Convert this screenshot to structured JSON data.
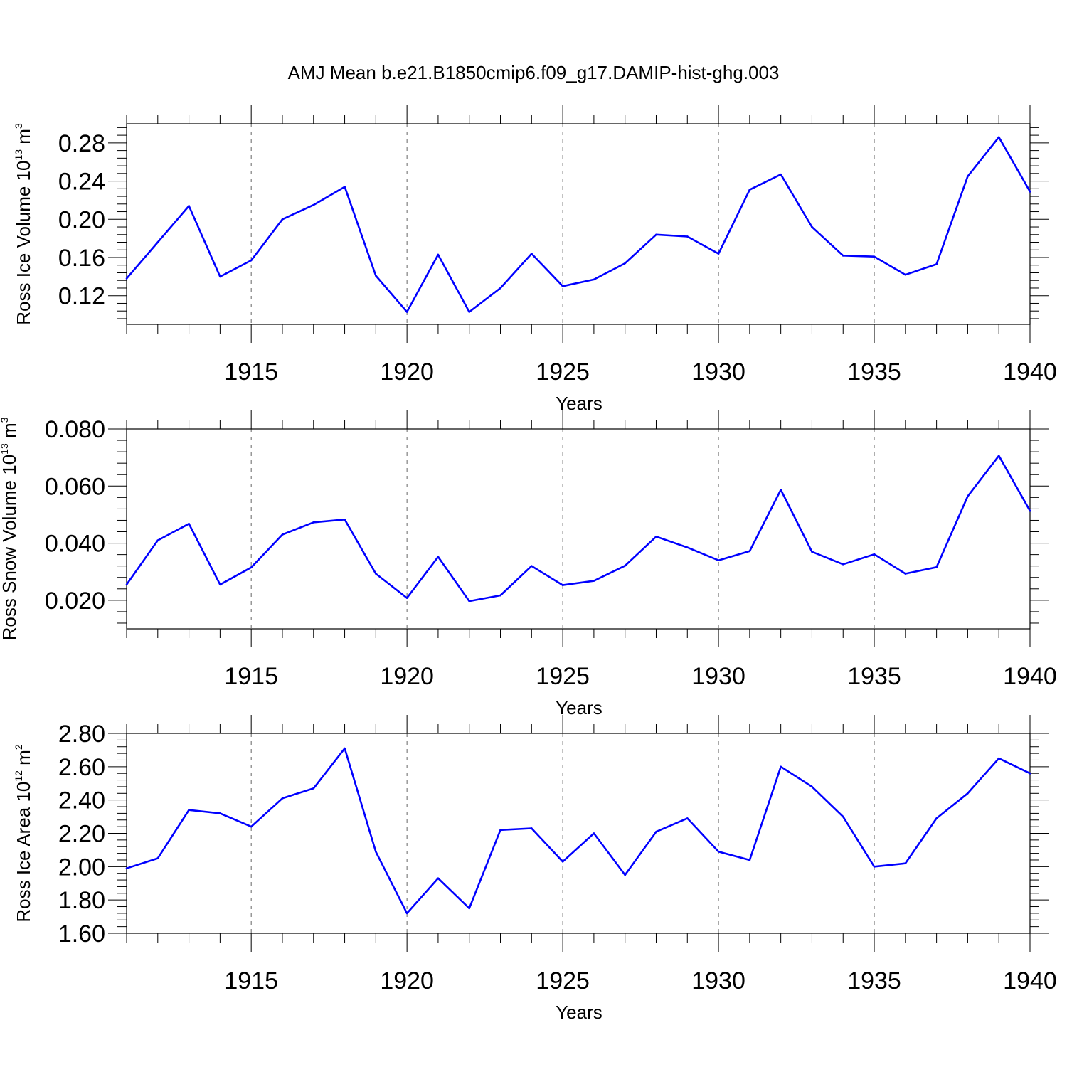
{
  "figure": {
    "title": "AMJ Mean b.e21.B1850cmip6.f09_g17.DAMIP-hist-ghg.003"
  },
  "chart_data": [
    {
      "type": "line",
      "ylabel": {
        "base": "Ross Ice Volume 10",
        "exp": "13",
        "unit": " m",
        "unit_exp": "3"
      },
      "xlabel": "Years",
      "xlim": [
        1911,
        1940
      ],
      "ylim": [
        0.09,
        0.3
      ],
      "xticks": [
        1915,
        1920,
        1925,
        1930,
        1935,
        1940
      ],
      "yticks": [
        "0.12",
        "0.16",
        "0.20",
        "0.24",
        "0.28"
      ],
      "color": "#0000ff",
      "x": [
        1911,
        1912,
        1913,
        1914,
        1915,
        1916,
        1917,
        1918,
        1919,
        1920,
        1921,
        1922,
        1923,
        1924,
        1925,
        1926,
        1927,
        1928,
        1929,
        1930,
        1931,
        1932,
        1933,
        1934,
        1935,
        1936,
        1937,
        1938,
        1939,
        1940
      ],
      "values": [
        0.138,
        0.176,
        0.214,
        0.14,
        0.157,
        0.2,
        0.215,
        0.234,
        0.141,
        0.103,
        0.163,
        0.103,
        0.128,
        0.164,
        0.13,
        0.137,
        0.154,
        0.184,
        0.182,
        0.164,
        0.231,
        0.247,
        0.192,
        0.162,
        0.161,
        0.142,
        0.153,
        0.245,
        0.286,
        0.229
      ]
    },
    {
      "type": "line",
      "ylabel": {
        "base": "Ross Snow Volume 10",
        "exp": "13",
        "unit": " m",
        "unit_exp": "3"
      },
      "xlabel": "Years",
      "xlim": [
        1911,
        1940
      ],
      "ylim": [
        0.01,
        0.08
      ],
      "xticks": [
        1915,
        1920,
        1925,
        1930,
        1935,
        1940
      ],
      "yticks": [
        "0.020",
        "0.040",
        "0.060",
        "0.080"
      ],
      "color": "#0000ff",
      "x": [
        1911,
        1912,
        1913,
        1914,
        1915,
        1916,
        1917,
        1918,
        1919,
        1920,
        1921,
        1922,
        1923,
        1924,
        1925,
        1926,
        1927,
        1928,
        1929,
        1930,
        1931,
        1932,
        1933,
        1934,
        1935,
        1936,
        1937,
        1938,
        1939,
        1940
      ],
      "values": [
        0.0255,
        0.041,
        0.0468,
        0.0255,
        0.0315,
        0.043,
        0.0473,
        0.0483,
        0.0293,
        0.0208,
        0.0352,
        0.0197,
        0.0217,
        0.032,
        0.0253,
        0.0268,
        0.0321,
        0.0423,
        0.0385,
        0.034,
        0.0372,
        0.0587,
        0.037,
        0.0326,
        0.0361,
        0.0293,
        0.0316,
        0.0564,
        0.0706,
        0.0513
      ]
    },
    {
      "type": "line",
      "ylabel": {
        "base": "Ross Ice Area 10",
        "exp": "12",
        "unit": " m",
        "unit_exp": "2"
      },
      "xlabel": "Years",
      "xlim": [
        1911,
        1940
      ],
      "ylim": [
        1.6,
        2.8
      ],
      "xticks": [
        1915,
        1920,
        1925,
        1930,
        1935,
        1940
      ],
      "yticks": [
        "1.60",
        "1.80",
        "2.00",
        "2.20",
        "2.40",
        "2.60",
        "2.80"
      ],
      "color": "#0000ff",
      "x": [
        1911,
        1912,
        1913,
        1914,
        1915,
        1916,
        1917,
        1918,
        1919,
        1920,
        1921,
        1922,
        1923,
        1924,
        1925,
        1926,
        1927,
        1928,
        1929,
        1930,
        1931,
        1932,
        1933,
        1934,
        1935,
        1936,
        1937,
        1938,
        1939,
        1940
      ],
      "values": [
        1.99,
        2.05,
        2.34,
        2.32,
        2.24,
        2.41,
        2.47,
        2.71,
        2.09,
        1.72,
        1.93,
        1.75,
        2.22,
        2.23,
        2.03,
        2.2,
        1.95,
        2.21,
        2.29,
        2.09,
        2.04,
        2.6,
        2.48,
        2.3,
        2.0,
        2.02,
        2.29,
        2.44,
        2.65,
        2.56
      ]
    }
  ]
}
